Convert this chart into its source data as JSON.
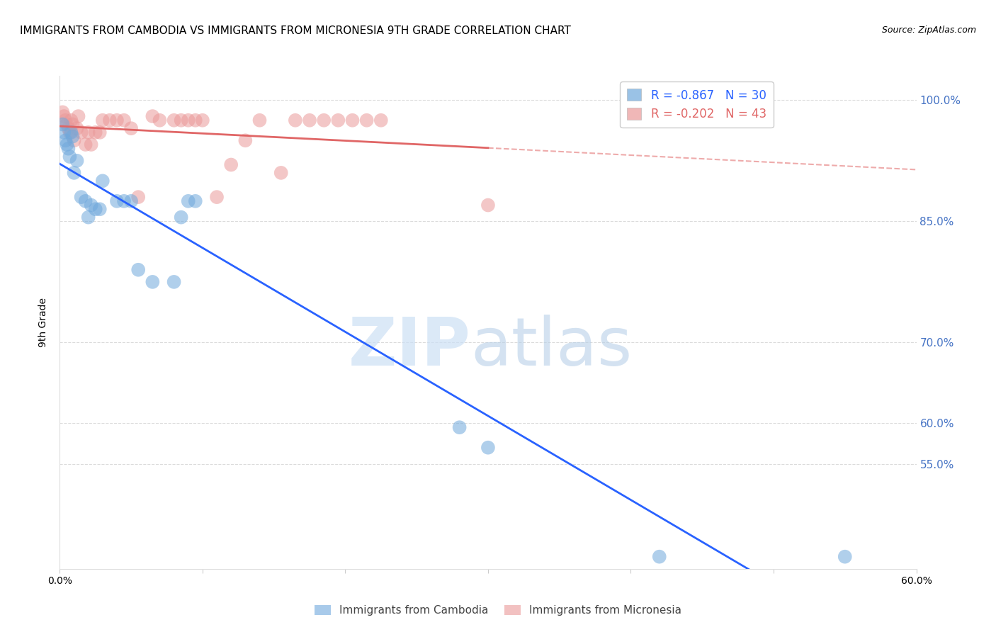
{
  "title": "IMMIGRANTS FROM CAMBODIA VS IMMIGRANTS FROM MICRONESIA 9TH GRADE CORRELATION CHART",
  "source": "Source: ZipAtlas.com",
  "ylabel": "9th Grade",
  "xlim": [
    0.0,
    0.6
  ],
  "ylim": [
    0.42,
    1.03
  ],
  "yticks": [
    0.55,
    0.6,
    0.7,
    0.85,
    1.0
  ],
  "ytick_labels": [
    "55.0%",
    "60.0%",
    "70.0%",
    "85.0%",
    "100.0%"
  ],
  "background_color": "#ffffff",
  "grid_color": "#cccccc",
  "cambodia_color": "#6fa8dc",
  "micronesia_color": "#ea9999",
  "cambodia_line_color": "#2962ff",
  "micronesia_line_color": "#e06666",
  "R_cambodia": -0.867,
  "N_cambodia": 30,
  "R_micronesia": -0.202,
  "N_micronesia": 43,
  "cambodia_x": [
    0.002,
    0.003,
    0.004,
    0.005,
    0.006,
    0.007,
    0.008,
    0.009,
    0.01,
    0.012,
    0.015,
    0.018,
    0.02,
    0.022,
    0.025,
    0.028,
    0.03,
    0.04,
    0.045,
    0.05,
    0.055,
    0.065,
    0.08,
    0.085,
    0.09,
    0.095,
    0.28,
    0.3,
    0.42,
    0.55
  ],
  "cambodia_y": [
    0.97,
    0.96,
    0.95,
    0.945,
    0.94,
    0.93,
    0.96,
    0.955,
    0.91,
    0.925,
    0.88,
    0.875,
    0.855,
    0.87,
    0.865,
    0.865,
    0.9,
    0.875,
    0.875,
    0.875,
    0.79,
    0.775,
    0.775,
    0.855,
    0.875,
    0.875,
    0.595,
    0.57,
    0.435,
    0.435
  ],
  "micronesia_x": [
    0.002,
    0.003,
    0.004,
    0.005,
    0.006,
    0.007,
    0.008,
    0.009,
    0.01,
    0.012,
    0.013,
    0.015,
    0.018,
    0.02,
    0.022,
    0.025,
    0.028,
    0.03,
    0.035,
    0.04,
    0.045,
    0.05,
    0.055,
    0.065,
    0.07,
    0.08,
    0.085,
    0.09,
    0.095,
    0.1,
    0.11,
    0.12,
    0.13,
    0.14,
    0.155,
    0.165,
    0.175,
    0.185,
    0.195,
    0.205,
    0.215,
    0.225,
    0.3
  ],
  "micronesia_y": [
    0.985,
    0.98,
    0.975,
    0.97,
    0.965,
    0.96,
    0.975,
    0.97,
    0.95,
    0.965,
    0.98,
    0.96,
    0.945,
    0.96,
    0.945,
    0.96,
    0.96,
    0.975,
    0.975,
    0.975,
    0.975,
    0.965,
    0.88,
    0.98,
    0.975,
    0.975,
    0.975,
    0.975,
    0.975,
    0.975,
    0.88,
    0.92,
    0.95,
    0.975,
    0.91,
    0.975,
    0.975,
    0.975,
    0.975,
    0.975,
    0.975,
    0.975,
    0.87
  ]
}
